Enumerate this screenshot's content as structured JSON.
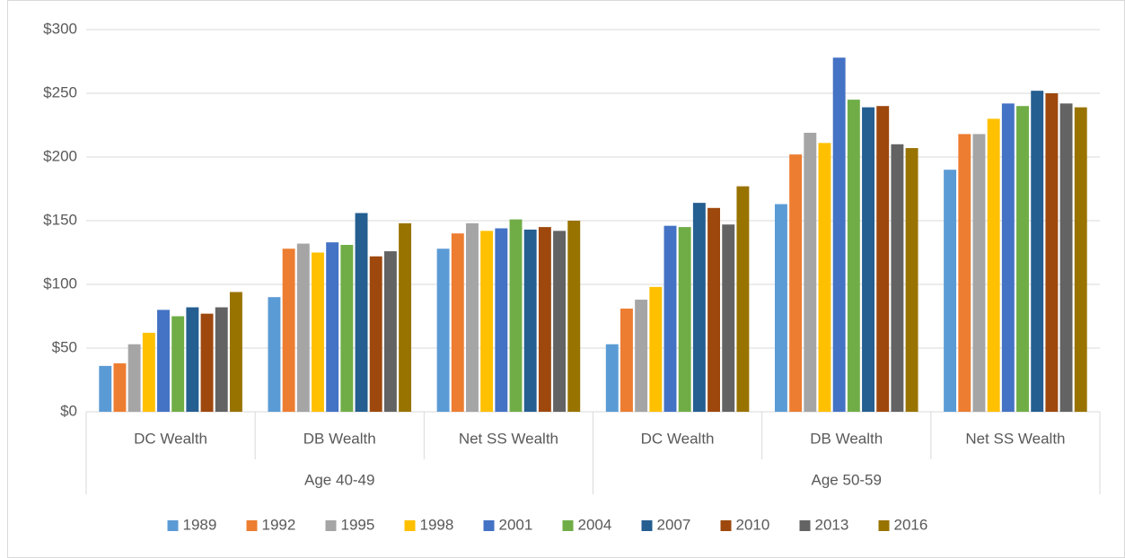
{
  "chart_data": {
    "type": "bar",
    "categories": [
      "DC Wealth",
      "DB Wealth",
      "Net SS Wealth",
      "DC Wealth",
      "DB Wealth",
      "Net SS Wealth"
    ],
    "category_groups": [
      "Age 40-49",
      "Age 50-59"
    ],
    "series": [
      {
        "name": "1989",
        "color": "#5b9bd5",
        "values": [
          36,
          90,
          128,
          53,
          163,
          190
        ]
      },
      {
        "name": "1992",
        "color": "#ed7d31",
        "values": [
          38,
          128,
          140,
          81,
          202,
          218
        ]
      },
      {
        "name": "1995",
        "color": "#a5a5a5",
        "values": [
          53,
          132,
          148,
          88,
          219,
          218
        ]
      },
      {
        "name": "1998",
        "color": "#ffc000",
        "values": [
          62,
          125,
          142,
          98,
          211,
          230
        ]
      },
      {
        "name": "2001",
        "color": "#4472c4",
        "values": [
          80,
          133,
          144,
          146,
          278,
          242
        ]
      },
      {
        "name": "2004",
        "color": "#70ad47",
        "values": [
          75,
          131,
          151,
          145,
          245,
          240
        ]
      },
      {
        "name": "2007",
        "color": "#255e91",
        "values": [
          82,
          156,
          143,
          164,
          239,
          252
        ]
      },
      {
        "name": "2010",
        "color": "#9e480e",
        "values": [
          77,
          122,
          145,
          160,
          240,
          250
        ]
      },
      {
        "name": "2013",
        "color": "#636363",
        "values": [
          82,
          126,
          142,
          147,
          210,
          242
        ]
      },
      {
        "name": "2016",
        "color": "#997300",
        "values": [
          94,
          148,
          150,
          177,
          207,
          239
        ]
      }
    ],
    "ylim": [
      0,
      300
    ],
    "yticks": [
      {
        "value": 0,
        "label": "$0"
      },
      {
        "value": 50,
        "label": "$50"
      },
      {
        "value": 100,
        "label": "$100"
      },
      {
        "value": 150,
        "label": "$150"
      },
      {
        "value": 200,
        "label": "$200"
      },
      {
        "value": 250,
        "label": "$250"
      },
      {
        "value": 300,
        "label": "$300"
      }
    ],
    "grid": true,
    "legend": "bottom"
  }
}
